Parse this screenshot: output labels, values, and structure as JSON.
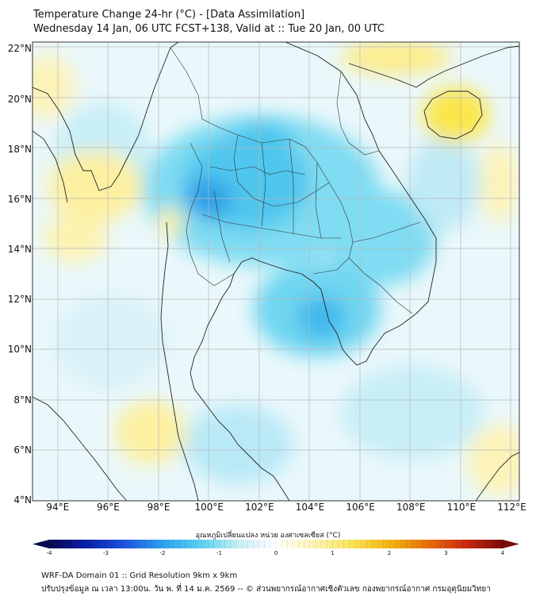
{
  "header": {
    "title": "Temperature Change 24-hr (°C) - [Data Assimilation]",
    "subtitle": "Wednesday 14 Jan, 06 UTC FCST+138, Valid at :: Tue 20 Jan, 00 UTC"
  },
  "map": {
    "lat_ticks": [
      "22°N",
      "20°N",
      "18°N",
      "16°N",
      "14°N",
      "12°N",
      "10°N",
      "8°N",
      "6°N",
      "4°N"
    ],
    "lon_ticks": [
      "94°E",
      "96°E",
      "98°E",
      "100°E",
      "102°E",
      "104°E",
      "106°E",
      "108°E",
      "110°E",
      "112°E"
    ],
    "lat_range": [
      4,
      22.3
    ],
    "lon_range": [
      93,
      112.3
    ]
  },
  "colorbar": {
    "title": "อุณหภูมิเปลี่ยนแปลง หน่วย องศาเซลเซียส (°C)",
    "ticks": [
      "-4",
      "-3",
      "-2",
      "-1",
      "0",
      "1",
      "2",
      "3",
      "4"
    ],
    "range": [
      -4,
      4
    ],
    "colors": [
      "#08084f",
      "#0c1fa8",
      "#1b55e0",
      "#2fa2ee",
      "#58d0f0",
      "#c6eef6",
      "#ffffff",
      "#fdf5b4",
      "#fbe35a",
      "#f4b50f",
      "#e8700c",
      "#cf2a10",
      "#7a0d0d"
    ]
  },
  "footer": {
    "line1": "WRF-DA Domain 01 :: Grid Resolution 9km x 9km",
    "line2": "ปรับปรุงข้อมูล ณ เวลา 13:00น. วัน พ. ที่ 14 ม.ค. 2569 -- © ส่วนพยากรณ์อากาศเชิงตัวเลข กองพยากรณ์อากาศ กรมอุตุนิยมวิทยา"
  }
}
